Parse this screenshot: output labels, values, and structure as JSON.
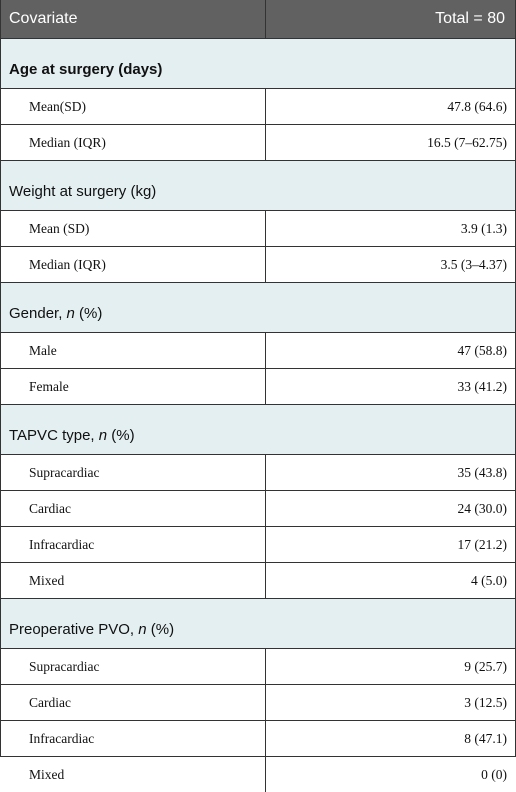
{
  "header": {
    "covariate": "Covariate",
    "total": "Total = 80"
  },
  "sections": [
    {
      "title": [
        "Age at surgery (days)"
      ],
      "bold": true,
      "rows": [
        [
          "Mean(SD)",
          "47.8 (64.6)"
        ],
        [
          "Median (IQR)",
          "16.5 (7–62.75)"
        ]
      ]
    },
    {
      "title": [
        "Weight at surgery (kg)"
      ],
      "bold": false,
      "rows": [
        [
          "Mean (SD)",
          "3.9 (1.3)"
        ],
        [
          "Median (IQR)",
          "3.5 (3–4.37)"
        ]
      ]
    },
    {
      "title": [
        "Gender, ",
        "n",
        " (%)"
      ],
      "bold": false,
      "rows": [
        [
          "Male",
          "47 (58.8)"
        ],
        [
          "Female",
          "33 (41.2)"
        ]
      ]
    },
    {
      "title": [
        "TAPVC type, ",
        "n",
        " (%)"
      ],
      "bold": false,
      "rows": [
        [
          "Supracardiac",
          "35 (43.8)"
        ],
        [
          "Cardiac",
          "24 (30.0)"
        ],
        [
          "Infracardiac",
          "17 (21.2)"
        ],
        [
          "Mixed",
          "4 (5.0)"
        ]
      ]
    },
    {
      "title": [
        "Preoperative PVO, ",
        "n",
        " (%)"
      ],
      "bold": false,
      "rows": [
        [
          "Supracardiac",
          "9 (25.7)"
        ],
        [
          "Cardiac",
          "3 (12.5)"
        ],
        [
          "Infracardiac",
          "8 (47.1)"
        ],
        [
          "Mixed",
          "0 (0)"
        ]
      ]
    }
  ]
}
